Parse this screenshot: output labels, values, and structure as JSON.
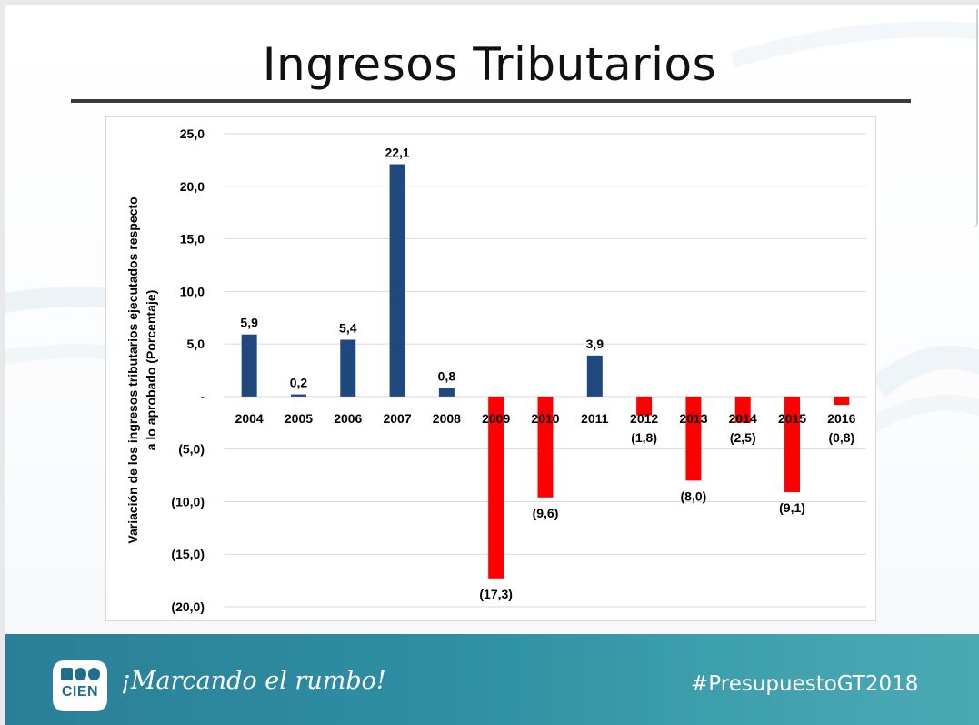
{
  "slide": {
    "title": "Ingresos Tributarios"
  },
  "footer": {
    "logo_text": "CIEN",
    "slogan": "¡Marcando el rumbo!",
    "hashtag": "#PresupuestoGT2018"
  },
  "colors": {
    "positive_bar": "#1f497d",
    "negative_bar": "#ff0000",
    "footer_bg": "#2f8ea3",
    "title_rule": "#3a3a3a"
  },
  "chart_data": {
    "type": "bar",
    "title": "",
    "xlabel": "",
    "ylabel": "Variación de los ingresos tributarios ejecutados respecto a lo aprobado (Porcentaje)",
    "ylabel_lines": [
      "Variación de los ingresos tributarios ejecutados respecto",
      "a lo aprobado (Porcentaje)"
    ],
    "ylim": [
      -20,
      25
    ],
    "yticks": [
      25,
      20,
      15,
      10,
      5,
      0,
      -5,
      -10,
      -15,
      -20
    ],
    "ytick_labels": [
      "25,0",
      "20,0",
      "15,0",
      "10,0",
      "5,0",
      "-",
      "(5,0)",
      "(10,0)",
      "(15,0)",
      "(20,0)"
    ],
    "grid": true,
    "categories": [
      "2004",
      "2005",
      "2006",
      "2007",
      "2008",
      "2009",
      "2010",
      "2011",
      "2012",
      "2013",
      "2014",
      "2015",
      "2016"
    ],
    "values": [
      5.9,
      0.2,
      5.4,
      22.1,
      0.8,
      -17.3,
      -9.6,
      3.9,
      -1.8,
      -8.0,
      -2.5,
      -9.1,
      -0.8
    ],
    "data_labels": [
      "5,9",
      "0,2",
      "5,4",
      "22,1",
      "0,8",
      "(17,3)",
      "(9,6)",
      "3,9",
      "(1,8)",
      "(8,0)",
      "(2,5)",
      "(9,1)",
      "(0,8)"
    ]
  }
}
